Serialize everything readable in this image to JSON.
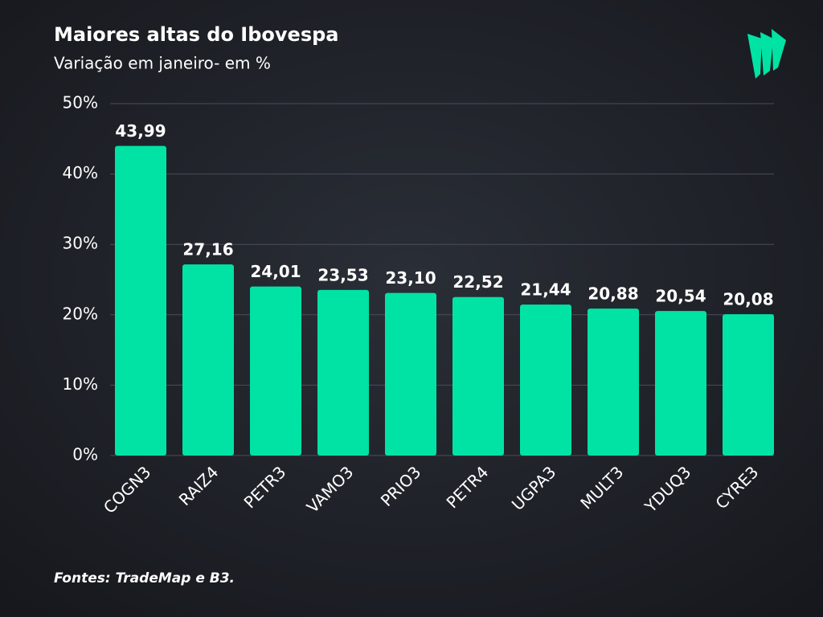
{
  "chart_data": {
    "type": "bar",
    "title": "Maiores altas do Ibovespa",
    "subtitle": "Variação em janeiro- em %",
    "categories": [
      "COGN3",
      "RAIZ4",
      "PETR3",
      "VAMO3",
      "PRIO3",
      "PETR4",
      "UGPA3",
      "MULT3",
      "YDUQ3",
      "CYRE3"
    ],
    "values": [
      43.99,
      27.16,
      24.01,
      23.53,
      23.1,
      22.52,
      21.44,
      20.88,
      20.54,
      20.08
    ],
    "value_labels": [
      "43,99",
      "27,16",
      "24,01",
      "23,53",
      "23,10",
      "22,52",
      "21,44",
      "20,88",
      "20,54",
      "20,08"
    ],
    "color": "#00e3a5",
    "ylim": [
      0,
      50
    ],
    "yticks": [
      {
        "value": 0,
        "label": "0%"
      },
      {
        "value": 10,
        "label": "10%"
      },
      {
        "value": 20,
        "label": "20%"
      },
      {
        "value": 30,
        "label": "30%"
      },
      {
        "value": 40,
        "label": "40%"
      },
      {
        "value": 50,
        "label": "50%"
      }
    ],
    "grid": true,
    "source": "Fontes: TradeMap e B3."
  }
}
